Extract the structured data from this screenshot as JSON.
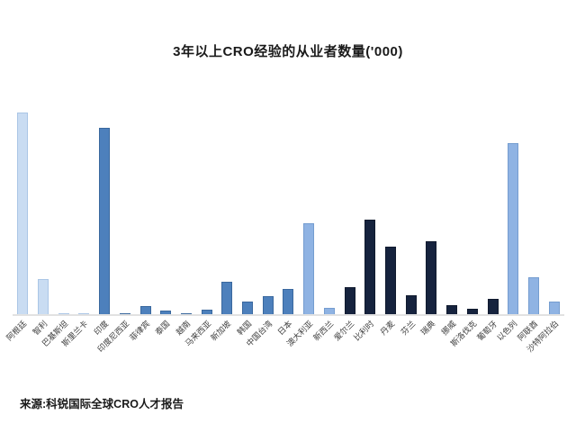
{
  "title": "3年以上CRO经验的从业者数量('000)",
  "source": "来源:科锐国际全球CRO人才报告",
  "colors": {
    "fill": {
      "light": "#c9dcf2",
      "asia": "#4d80bc",
      "mid": "#8fb3e3",
      "europe": "#16233e"
    },
    "border": {
      "light": "#aac6e6",
      "asia": "#3a689e",
      "mid": "#759dd0",
      "europe": "#101a2e"
    },
    "axis_line": "#e2e2e2"
  },
  "chart_data": {
    "type": "bar",
    "title": "3年以上CRO经验的从业者数量('000)",
    "xlabel": "",
    "ylabel": "",
    "unit": "'000",
    "ylim": [
      0,
      23.5
    ],
    "grid": false,
    "legend": false,
    "categories": [
      "阿根廷",
      "智利",
      "巴基斯坦",
      "斯里兰卡",
      "印度",
      "印度尼西亚",
      "菲律宾",
      "泰国",
      "越南",
      "马来西亚",
      "新加坡",
      "韩国",
      "中国台湾",
      "日本",
      "澳大利亚",
      "新西兰",
      "爱尔兰",
      "比利时",
      "丹麦",
      "芬兰",
      "瑞典",
      "挪威",
      "斯洛伐克",
      "葡萄牙",
      "以色列",
      "阿联酋",
      "沙特阿拉伯"
    ],
    "values": [
      22.4,
      3.9,
      0.15,
      0.05,
      20.7,
      0.15,
      0.9,
      0.45,
      0.1,
      0.5,
      3.6,
      1.4,
      2.0,
      2.8,
      10.1,
      0.7,
      3.0,
      10.5,
      7.5,
      2.1,
      8.1,
      1.0,
      0.6,
      1.7,
      19.0,
      4.1,
      1.4
    ],
    "color_groups": [
      "light",
      "light",
      "light",
      "light",
      "asia",
      "asia",
      "asia",
      "asia",
      "asia",
      "asia",
      "asia",
      "asia",
      "asia",
      "asia",
      "mid",
      "mid",
      "europe",
      "europe",
      "europe",
      "europe",
      "europe",
      "europe",
      "europe",
      "europe",
      "mid",
      "mid",
      "mid"
    ]
  }
}
